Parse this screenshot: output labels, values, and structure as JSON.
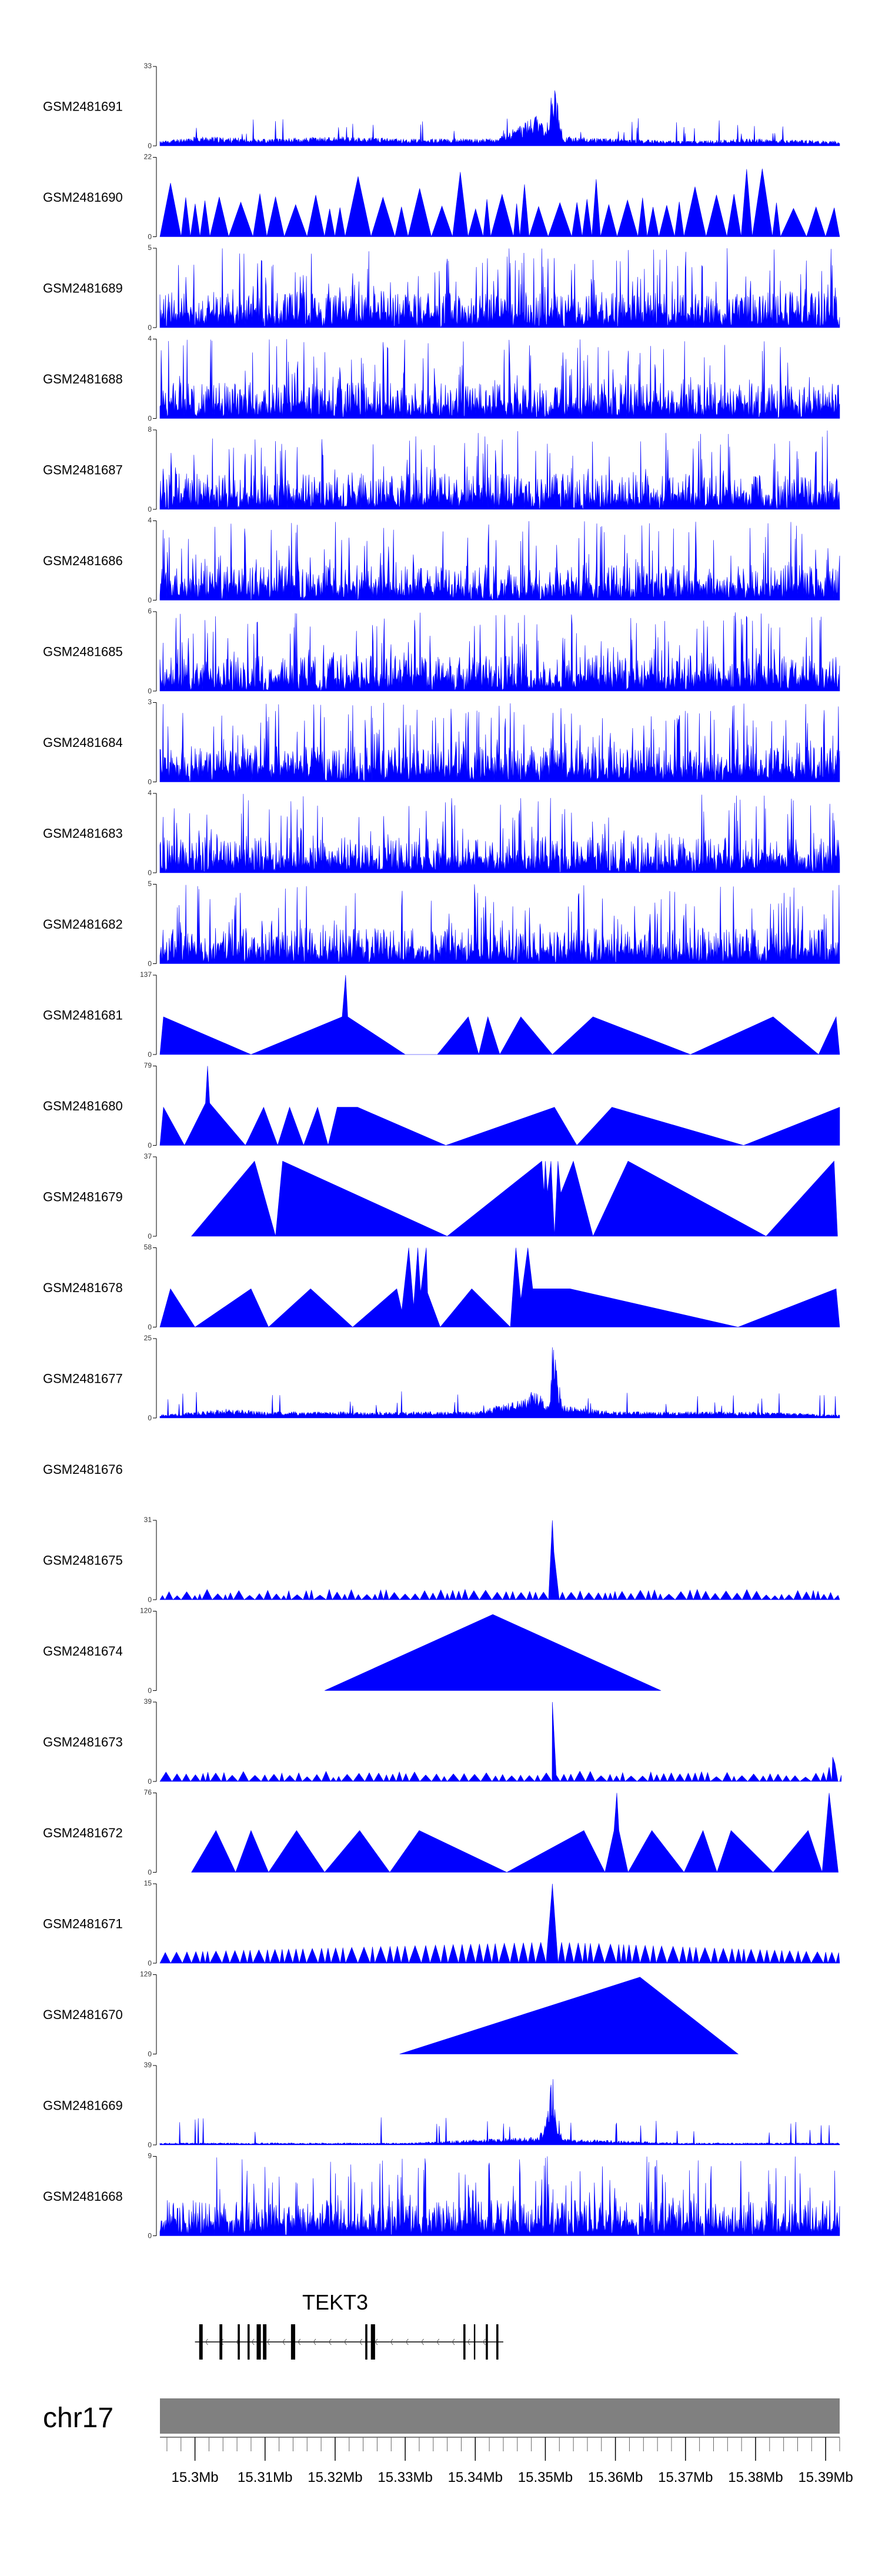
{
  "chart_data": {
    "type": "area",
    "title": "",
    "color": "#0000FF",
    "x_unit": "Mb",
    "xlim": [
      15.295,
      15.392
    ],
    "tracks": [
      {
        "name": "GSM2481691",
        "ymax": 33,
        "style": "noise-peak",
        "seed": 11,
        "points": [
          [
            15.295,
            2
          ],
          [
            15.3,
            4
          ],
          [
            15.31,
            3
          ],
          [
            15.32,
            4
          ],
          [
            15.33,
            3
          ],
          [
            15.343,
            3
          ],
          [
            15.349,
            13
          ],
          [
            15.3503,
            6
          ],
          [
            15.351,
            33
          ],
          [
            15.3525,
            4
          ],
          [
            15.36,
            3
          ],
          [
            15.37,
            2
          ],
          [
            15.38,
            3
          ],
          [
            15.392,
            2
          ]
        ]
      },
      {
        "name": "GSM2481690",
        "ymax": 22,
        "style": "spiky",
        "seed": 12,
        "points": []
      },
      {
        "name": "GSM2481689",
        "ymax": 5,
        "style": "noise",
        "seed": 13,
        "points": []
      },
      {
        "name": "GSM2481688",
        "ymax": 4,
        "style": "noise",
        "seed": 14,
        "points": []
      },
      {
        "name": "GSM2481687",
        "ymax": 8,
        "style": "noise",
        "seed": 15,
        "points": []
      },
      {
        "name": "GSM2481686",
        "ymax": 4,
        "style": "noise",
        "seed": 16,
        "points": []
      },
      {
        "name": "GSM2481685",
        "ymax": 6,
        "style": "noise",
        "seed": 17,
        "points": []
      },
      {
        "name": "GSM2481684",
        "ymax": 3,
        "style": "noise",
        "seed": 18,
        "points": []
      },
      {
        "name": "GSM2481683",
        "ymax": 4,
        "style": "noise",
        "seed": 19,
        "points": []
      },
      {
        "name": "GSM2481682",
        "ymax": 5,
        "style": "noise",
        "seed": 20,
        "points": []
      },
      {
        "name": "GSM2481681",
        "ymax": 137,
        "style": "peaks",
        "points": [
          [
            15.295,
            0
          ],
          [
            15.2955,
            65
          ],
          [
            15.308,
            0
          ],
          [
            15.321,
            65
          ],
          [
            15.3215,
            137
          ],
          [
            15.3218,
            65
          ],
          [
            15.33,
            0
          ],
          [
            15.3346,
            0
          ],
          [
            15.339,
            65
          ],
          [
            15.3405,
            0
          ],
          [
            15.3418,
            65
          ],
          [
            15.3435,
            0
          ],
          [
            15.3465,
            65
          ],
          [
            15.351,
            0
          ],
          [
            15.3568,
            65
          ],
          [
            15.3707,
            0
          ],
          [
            15.3825,
            65
          ],
          [
            15.389,
            0
          ],
          [
            15.3915,
            65
          ],
          [
            15.392,
            0
          ]
        ]
      },
      {
        "name": "GSM2481680",
        "ymax": 79,
        "style": "peaks",
        "points": [
          [
            15.295,
            0
          ],
          [
            15.2955,
            38
          ],
          [
            15.2985,
            0
          ],
          [
            15.3015,
            42
          ],
          [
            15.3018,
            79
          ],
          [
            15.3021,
            42
          ],
          [
            15.3072,
            0
          ],
          [
            15.3098,
            38
          ],
          [
            15.3118,
            0
          ],
          [
            15.3135,
            38
          ],
          [
            15.3155,
            0
          ],
          [
            15.3175,
            38
          ],
          [
            15.319,
            0
          ],
          [
            15.3203,
            38
          ],
          [
            15.3232,
            38
          ],
          [
            15.3358,
            0
          ],
          [
            15.3513,
            38
          ],
          [
            15.3545,
            0
          ],
          [
            15.3595,
            38
          ],
          [
            15.3783,
            0
          ],
          [
            15.392,
            38
          ],
          [
            15.392,
            0
          ]
        ]
      },
      {
        "name": "GSM2481679",
        "ymax": 37,
        "style": "peaks",
        "points": [
          [
            15.2995,
            0
          ],
          [
            15.3085,
            35
          ],
          [
            15.3115,
            0
          ],
          [
            15.3125,
            35
          ],
          [
            15.336,
            0
          ],
          [
            15.3495,
            35
          ],
          [
            15.3498,
            20
          ],
          [
            15.35,
            35
          ],
          [
            15.3503,
            20
          ],
          [
            15.3508,
            35
          ],
          [
            15.3513,
            0
          ],
          [
            15.3518,
            35
          ],
          [
            15.3522,
            20
          ],
          [
            15.354,
            35
          ],
          [
            15.3568,
            0
          ],
          [
            15.3618,
            35
          ],
          [
            15.3815,
            0
          ],
          [
            15.3912,
            35
          ],
          [
            15.3917,
            0
          ]
        ]
      },
      {
        "name": "GSM2481678",
        "ymax": 58,
        "style": "peaks",
        "points": [
          [
            15.295,
            0
          ],
          [
            15.2965,
            28
          ],
          [
            15.3,
            0
          ],
          [
            15.308,
            28
          ],
          [
            15.3105,
            0
          ],
          [
            15.3165,
            28
          ],
          [
            15.3225,
            0
          ],
          [
            15.3288,
            28
          ],
          [
            15.3295,
            12
          ],
          [
            15.3305,
            58
          ],
          [
            15.3312,
            15
          ],
          [
            15.3318,
            58
          ],
          [
            15.3322,
            25
          ],
          [
            15.333,
            58
          ],
          [
            15.3332,
            25
          ],
          [
            15.335,
            0
          ],
          [
            15.3395,
            28
          ],
          [
            15.345,
            0
          ],
          [
            15.3458,
            58
          ],
          [
            15.3465,
            20
          ],
          [
            15.3475,
            58
          ],
          [
            15.3482,
            28
          ],
          [
            15.3535,
            28
          ],
          [
            15.3775,
            0
          ],
          [
            15.3915,
            28
          ],
          [
            15.392,
            0
          ]
        ]
      },
      {
        "name": "GSM2481677",
        "ymax": 25,
        "style": "noise-peak",
        "seed": 21,
        "points": [
          [
            15.295,
            1
          ],
          [
            15.3,
            2
          ],
          [
            15.305,
            3
          ],
          [
            15.31,
            2
          ],
          [
            15.32,
            2
          ],
          [
            15.33,
            2
          ],
          [
            15.34,
            2
          ],
          [
            15.349,
            8
          ],
          [
            15.3505,
            4
          ],
          [
            15.351,
            25
          ],
          [
            15.3525,
            4
          ],
          [
            15.36,
            2
          ],
          [
            15.37,
            2
          ],
          [
            15.38,
            2
          ],
          [
            15.392,
            1
          ]
        ]
      },
      {
        "name": "GSM2481676",
        "ymax": null,
        "style": "empty",
        "points": []
      },
      {
        "name": "GSM2481675",
        "ymax": 31,
        "style": "sawtooth-peak",
        "seed": 22,
        "points": [
          [
            15.295,
            1
          ],
          [
            15.3505,
            3
          ],
          [
            15.351,
            31
          ],
          [
            15.3515,
            3
          ],
          [
            15.392,
            1
          ]
        ]
      },
      {
        "name": "GSM2481674",
        "ymax": 120,
        "style": "peaks",
        "points": [
          [
            15.3185,
            0
          ],
          [
            15.3425,
            115
          ],
          [
            15.3665,
            0
          ]
        ]
      },
      {
        "name": "GSM2481673",
        "ymax": 39,
        "style": "sawtooth-peak",
        "seed": 23,
        "points": [
          [
            15.295,
            1
          ],
          [
            15.3505,
            3
          ],
          [
            15.351,
            39
          ],
          [
            15.3515,
            3
          ],
          [
            15.39,
            2
          ],
          [
            15.391,
            12
          ],
          [
            15.392,
            2
          ]
        ]
      },
      {
        "name": "GSM2481672",
        "ymax": 76,
        "style": "peaks",
        "points": [
          [
            15.2995,
            0
          ],
          [
            15.303,
            40
          ],
          [
            15.3058,
            0
          ],
          [
            15.308,
            40
          ],
          [
            15.3105,
            0
          ],
          [
            15.3145,
            40
          ],
          [
            15.3185,
            0
          ],
          [
            15.3235,
            40
          ],
          [
            15.3278,
            0
          ],
          [
            15.332,
            40
          ],
          [
            15.3445,
            0
          ],
          [
            15.3555,
            40
          ],
          [
            15.3585,
            0
          ],
          [
            15.3598,
            40
          ],
          [
            15.3602,
            76
          ],
          [
            15.3605,
            40
          ],
          [
            15.3618,
            0
          ],
          [
            15.3652,
            40
          ],
          [
            15.3698,
            0
          ],
          [
            15.3725,
            40
          ],
          [
            15.3745,
            0
          ],
          [
            15.3765,
            40
          ],
          [
            15.3825,
            0
          ],
          [
            15.3875,
            40
          ],
          [
            15.3895,
            0
          ],
          [
            15.3905,
            76
          ],
          [
            15.3918,
            0
          ]
        ]
      },
      {
        "name": "GSM2481671",
        "ymax": 15,
        "style": "sawtooth-peak",
        "seed": 24,
        "points": [
          [
            15.295,
            2
          ],
          [
            15.3505,
            4
          ],
          [
            15.351,
            15
          ],
          [
            15.3515,
            4
          ],
          [
            15.392,
            2
          ]
        ]
      },
      {
        "name": "GSM2481670",
        "ymax": 129,
        "style": "peaks",
        "points": [
          [
            15.3292,
            0
          ],
          [
            15.3635,
            125
          ],
          [
            15.3775,
            0
          ]
        ]
      },
      {
        "name": "GSM2481669",
        "ymax": 39,
        "style": "noise-peak",
        "seed": 25,
        "points": [
          [
            15.295,
            1
          ],
          [
            15.31,
            1
          ],
          [
            15.33,
            1
          ],
          [
            15.349,
            4
          ],
          [
            15.35,
            10
          ],
          [
            15.3505,
            22
          ],
          [
            15.351,
            39
          ],
          [
            15.3515,
            20
          ],
          [
            15.352,
            8
          ],
          [
            15.353,
            3
          ],
          [
            15.37,
            1
          ],
          [
            15.392,
            1
          ]
        ]
      },
      {
        "name": "GSM2481668",
        "ymax": 9,
        "style": "noise",
        "seed": 26,
        "points": []
      }
    ],
    "gene": {
      "name": "TEKT3",
      "start": 15.3,
      "end": 15.344,
      "strand": "-",
      "exons": [
        [
          15.3006,
          15.3011
        ],
        [
          15.3035,
          15.3039
        ],
        [
          15.3061,
          15.3064
        ],
        [
          15.3075,
          15.3078
        ],
        [
          15.3088,
          15.3094
        ],
        [
          15.3097,
          15.3102
        ],
        [
          15.3137,
          15.3143
        ],
        [
          15.3243,
          15.3246
        ],
        [
          15.3251,
          15.3257
        ],
        [
          15.3383,
          15.3386
        ],
        [
          15.3398,
          15.34
        ],
        [
          15.3415,
          15.3418
        ],
        [
          15.343,
          15.3433
        ]
      ]
    },
    "chromosome": "chr17",
    "xticks": [
      15.3,
      15.31,
      15.32,
      15.33,
      15.34,
      15.35,
      15.36,
      15.37,
      15.38,
      15.39
    ],
    "xtick_labels": [
      "15.3Mb",
      "15.31Mb",
      "15.32Mb",
      "15.33Mb",
      "15.34Mb",
      "15.35Mb",
      "15.36Mb",
      "15.37Mb",
      "15.38Mb",
      "15.39Mb"
    ],
    "minor_tick_step": 0.002
  }
}
